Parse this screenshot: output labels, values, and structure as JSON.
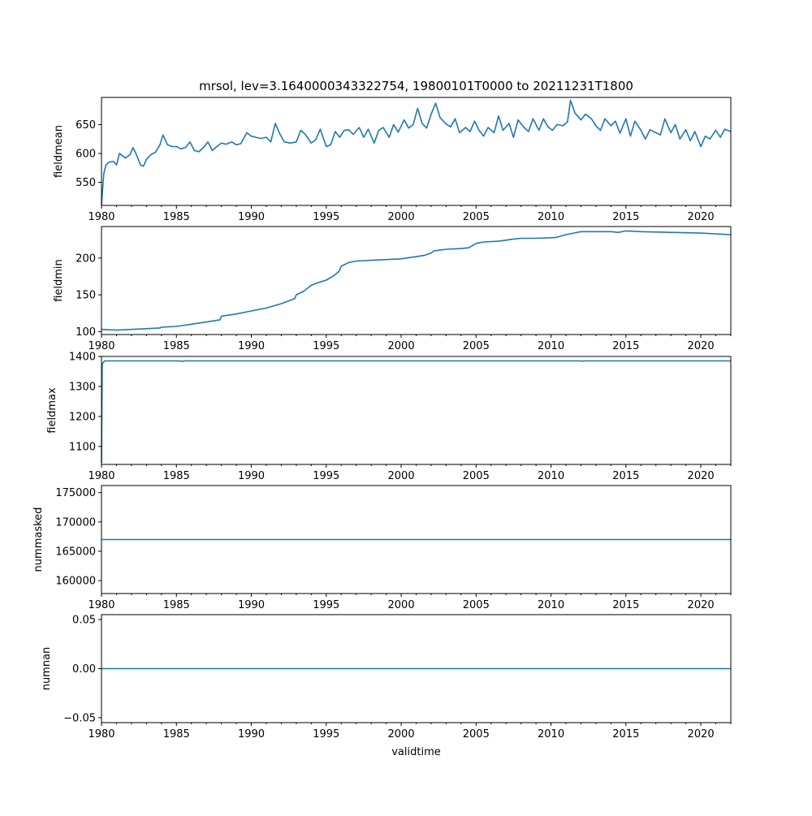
{
  "figure": {
    "title": "mrsol, lev=3.1640000343322754, 19800101T0000 to 20211231T1800",
    "xlabel": "validtime"
  },
  "chart_data": [
    {
      "type": "line",
      "name": "fieldmean",
      "ylabel": "fieldmean",
      "color": "#1f77b4",
      "xlim": [
        1980,
        2022
      ],
      "ylim": [
        510,
        697
      ],
      "xticks": [
        1980,
        1985,
        1990,
        1995,
        2000,
        2005,
        2010,
        2015,
        2020
      ],
      "xtick_labels": [
        "1980",
        "1985",
        "1990",
        "1995",
        "2000",
        "2005",
        "2010",
        "2015",
        "2020"
      ],
      "yticks": [
        550,
        600,
        650
      ],
      "ytick_labels": [
        "550",
        "600",
        "650"
      ],
      "x": [
        1980.0,
        1980.15,
        1980.3,
        1980.5,
        1980.8,
        1981.0,
        1981.2,
        1981.4,
        1981.6,
        1981.9,
        1982.1,
        1982.3,
        1982.6,
        1982.8,
        1983.0,
        1983.3,
        1983.6,
        1983.9,
        1984.1,
        1984.4,
        1984.7,
        1985.0,
        1985.3,
        1985.6,
        1985.9,
        1986.2,
        1986.5,
        1986.8,
        1987.1,
        1987.4,
        1987.7,
        1988.0,
        1988.3,
        1988.7,
        1989.0,
        1989.3,
        1989.7,
        1990.0,
        1990.3,
        1990.6,
        1991.0,
        1991.3,
        1991.6,
        1991.9,
        1992.2,
        1992.6,
        1993.0,
        1993.3,
        1993.6,
        1994.0,
        1994.3,
        1994.6,
        1995.0,
        1995.3,
        1995.6,
        1995.9,
        1996.2,
        1996.5,
        1996.8,
        1997.2,
        1997.5,
        1997.8,
        1998.2,
        1998.5,
        1998.8,
        1999.2,
        1999.5,
        1999.8,
        2000.2,
        2000.5,
        2000.8,
        2001.1,
        2001.4,
        2001.7,
        2002.0,
        2002.3,
        2002.6,
        2003.0,
        2003.3,
        2003.6,
        2003.9,
        2004.3,
        2004.6,
        2004.9,
        2005.2,
        2005.5,
        2005.8,
        2006.2,
        2006.5,
        2006.8,
        2007.2,
        2007.5,
        2007.8,
        2008.2,
        2008.5,
        2008.8,
        2009.2,
        2009.5,
        2009.8,
        2010.1,
        2010.4,
        2010.8,
        2011.1,
        2011.3,
        2011.6,
        2012.0,
        2012.3,
        2012.7,
        2013.0,
        2013.3,
        2013.6,
        2014.0,
        2014.3,
        2014.6,
        2015.0,
        2015.3,
        2015.6,
        2016.0,
        2016.3,
        2016.6,
        2017.0,
        2017.3,
        2017.6,
        2018.0,
        2018.3,
        2018.6,
        2019.0,
        2019.3,
        2019.6,
        2020.0,
        2020.3,
        2020.6,
        2021.0,
        2021.3,
        2021.6,
        2022.0
      ],
      "y": [
        511,
        565,
        580,
        585,
        586,
        580,
        600,
        596,
        592,
        598,
        610,
        600,
        580,
        578,
        590,
        598,
        602,
        615,
        632,
        615,
        612,
        612,
        608,
        610,
        620,
        605,
        603,
        610,
        620,
        605,
        612,
        618,
        616,
        620,
        615,
        617,
        636,
        630,
        628,
        626,
        628,
        620,
        652,
        634,
        620,
        618,
        620,
        640,
        633,
        618,
        624,
        642,
        612,
        615,
        638,
        628,
        640,
        641,
        633,
        645,
        628,
        642,
        618,
        640,
        645,
        628,
        650,
        637,
        658,
        644,
        650,
        678,
        652,
        644,
        668,
        687,
        662,
        651,
        646,
        660,
        636,
        645,
        638,
        656,
        640,
        630,
        645,
        636,
        665,
        640,
        652,
        628,
        658,
        645,
        638,
        660,
        640,
        660,
        646,
        640,
        650,
        648,
        655,
        692,
        670,
        658,
        668,
        660,
        648,
        640,
        660,
        648,
        656,
        635,
        660,
        630,
        656,
        640,
        625,
        641,
        636,
        632,
        660,
        636,
        650,
        625,
        641,
        622,
        638,
        612,
        630,
        625,
        640,
        628,
        642,
        638
      ],
      "text": "fieldmean"
    },
    {
      "type": "line",
      "name": "fieldmin",
      "ylabel": "fieldmin",
      "color": "#1f77b4",
      "xlim": [
        1980,
        2022
      ],
      "ylim": [
        96,
        243
      ],
      "xticks": [
        1980,
        1985,
        1990,
        1995,
        2000,
        2005,
        2010,
        2015,
        2020
      ],
      "xtick_labels": [
        "1980",
        "1985",
        "1990",
        "1995",
        "2000",
        "2005",
        "2010",
        "2015",
        "2020"
      ],
      "yticks": [
        100,
        150,
        200
      ],
      "ytick_labels": [
        "100",
        "150",
        "200"
      ],
      "x": [
        1980.0,
        1981.0,
        1982.0,
        1983.0,
        1983.9,
        1984.0,
        1985.0,
        1986.0,
        1987.0,
        1987.9,
        1988.0,
        1989.0,
        1990.0,
        1991.0,
        1992.0,
        1992.9,
        1993.0,
        1993.5,
        1994.0,
        1994.5,
        1995.0,
        1995.5,
        1995.85,
        1996.0,
        1996.5,
        1997.0,
        1998.0,
        1999.0,
        2000.0,
        2001.0,
        2001.6,
        2002.0,
        2002.2,
        2003.0,
        2004.0,
        2004.5,
        2005.0,
        2005.5,
        2006.5,
        2007.5,
        2008.0,
        2009.0,
        2010.3,
        2011.0,
        2011.5,
        2012.0,
        2013.0,
        2014.0,
        2014.5,
        2015.0,
        2016.0,
        2018.0,
        2020.0,
        2021.0,
        2022.0
      ],
      "y": [
        103,
        102,
        103,
        104,
        105,
        106,
        107,
        110,
        113,
        116,
        121,
        124,
        128,
        132,
        138,
        145,
        150,
        155,
        163,
        167,
        170,
        176,
        182,
        189,
        194,
        196,
        197,
        198,
        199,
        202,
        204,
        207,
        210,
        212,
        213,
        214,
        220,
        222,
        223,
        226,
        227,
        227,
        228,
        232,
        234,
        236,
        236,
        236,
        235,
        237,
        236,
        235,
        234,
        233,
        232
      ],
      "text": "fieldmin"
    },
    {
      "type": "line",
      "name": "fieldmax",
      "ylabel": "fieldmax",
      "color": "#1f77b4",
      "xlim": [
        1980,
        2022
      ],
      "ylim": [
        1040,
        1400
      ],
      "xticks": [
        1980,
        1985,
        1990,
        1995,
        2000,
        2005,
        2010,
        2015,
        2020
      ],
      "xtick_labels": [
        "1980",
        "1985",
        "1990",
        "1995",
        "2000",
        "2005",
        "2010",
        "2015",
        "2020"
      ],
      "yticks": [
        1100,
        1200,
        1300,
        1400
      ],
      "ytick_labels": [
        "1100",
        "1200",
        "1300",
        "1400"
      ],
      "x": [
        1980.0,
        1980.05,
        1980.2,
        1985.3,
        1985.4,
        1985.5,
        2012.0,
        2012.1,
        2012.2,
        2022.0
      ],
      "y": [
        1045,
        1375,
        1385,
        1385,
        1383,
        1385,
        1385,
        1384,
        1385,
        1385
      ],
      "text": "fieldmax"
    },
    {
      "type": "line",
      "name": "nummasked",
      "ylabel": "nummasked",
      "color": "#1f77b4",
      "xlim": [
        1980,
        2022
      ],
      "ylim": [
        157800,
        176200
      ],
      "xticks": [
        1980,
        1985,
        1990,
        1995,
        2000,
        2005,
        2010,
        2015,
        2020
      ],
      "xtick_labels": [
        "1980",
        "1985",
        "1990",
        "1995",
        "2000",
        "2005",
        "2010",
        "2015",
        "2020"
      ],
      "yticks": [
        160000,
        165000,
        170000,
        175000
      ],
      "ytick_labels": [
        "160000",
        "165000",
        "170000",
        "175000"
      ],
      "x": [
        1980.0,
        2022.0
      ],
      "y": [
        167000,
        167000
      ],
      "text": "nummasked"
    },
    {
      "type": "line",
      "name": "numnan",
      "ylabel": "numnan",
      "color": "#1f77b4",
      "xlim": [
        1980,
        2022
      ],
      "ylim": [
        -0.055,
        0.055
      ],
      "xticks": [
        1980,
        1985,
        1990,
        1995,
        2000,
        2005,
        2010,
        2015,
        2020
      ],
      "xtick_labels": [
        "1980",
        "1985",
        "1990",
        "1995",
        "2000",
        "2005",
        "2010",
        "2015",
        "2020"
      ],
      "yticks": [
        -0.05,
        0.0,
        0.05
      ],
      "ytick_labels": [
        "−0.05",
        "0.00",
        "0.05"
      ],
      "x": [
        1980.0,
        2022.0
      ],
      "y": [
        0.0,
        0.0
      ],
      "text": "numnan"
    }
  ]
}
